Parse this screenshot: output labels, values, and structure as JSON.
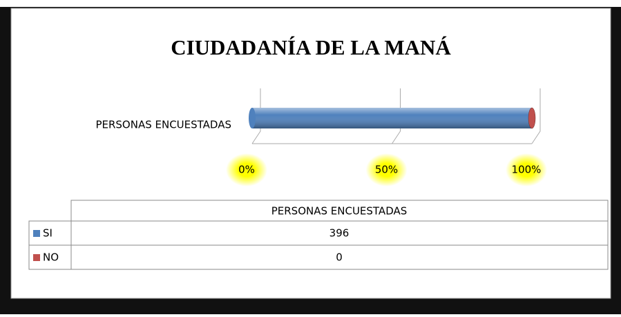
{
  "chart_data": {
    "type": "bar",
    "orientation": "horizontal",
    "stacking": "percent",
    "title": "CIUDADANÍA DE LA MANÁ",
    "categories": [
      "PERSONAS ENCUESTADAS"
    ],
    "series": [
      {
        "name": "SI",
        "color": "#4f81bd",
        "values": [
          396
        ]
      },
      {
        "name": "NO",
        "color": "#c0504d",
        "values": [
          0
        ]
      }
    ],
    "xlim": [
      0,
      100
    ],
    "xticks": [
      {
        "value": 0,
        "label": "0%"
      },
      {
        "value": 50,
        "label": "50%"
      },
      {
        "value": 100,
        "label": "100%"
      }
    ],
    "grid": true,
    "data_table": true
  }
}
